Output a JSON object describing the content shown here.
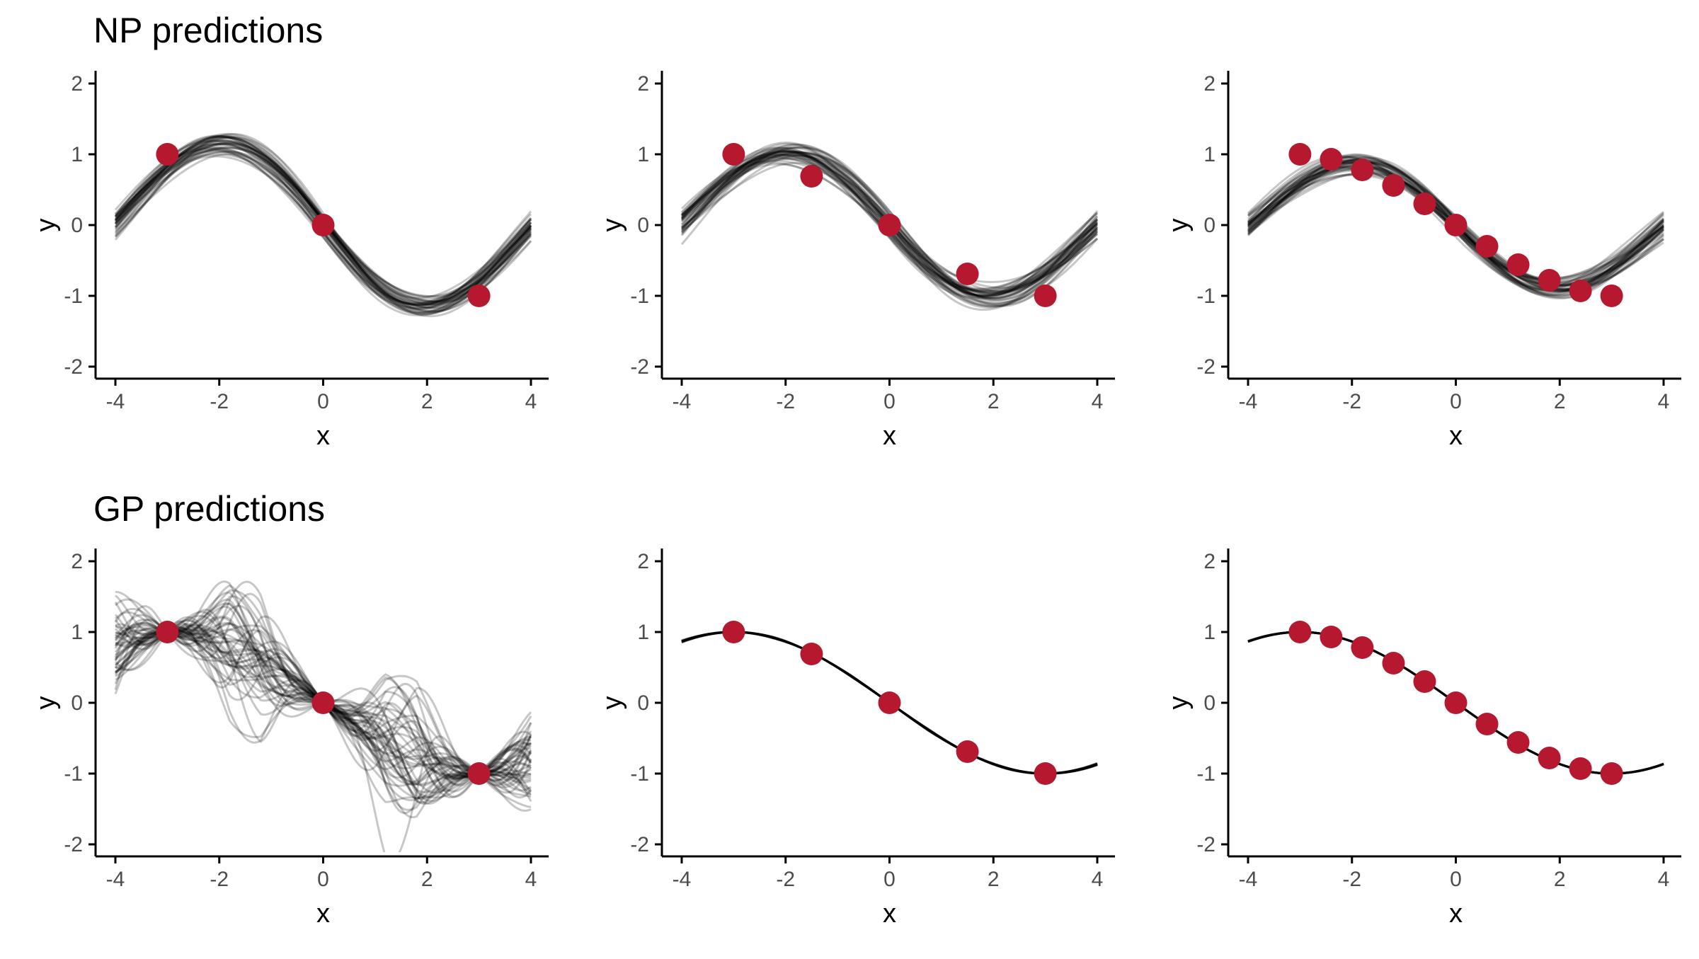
{
  "figure": {
    "rows": [
      {
        "title": "NP predictions",
        "model": "np"
      },
      {
        "title": "GP predictions",
        "model": "gp"
      }
    ]
  },
  "chart_data": [
    {
      "type": "line",
      "model": "np",
      "row": 0,
      "col": 0,
      "xlabel": "x",
      "ylabel": "y",
      "xlim": [
        -4,
        4
      ],
      "ylim": [
        -2,
        2
      ],
      "xticks": [
        "-4",
        "-2",
        "0",
        "2",
        "4"
      ],
      "yticks": [
        "-2",
        "-1",
        "0",
        "1",
        "2"
      ],
      "context_points": [
        {
          "x": -3,
          "y": 1
        },
        {
          "x": 0,
          "y": 0
        },
        {
          "x": 3,
          "y": -1
        }
      ],
      "sample_count": 40,
      "sample_spread": 0.09,
      "amplitude": 1.25
    },
    {
      "type": "line",
      "model": "np",
      "row": 0,
      "col": 1,
      "xlabel": "x",
      "ylabel": "y",
      "xlim": [
        -4,
        4
      ],
      "ylim": [
        -2,
        2
      ],
      "xticks": [
        "-4",
        "-2",
        "0",
        "2",
        "4"
      ],
      "yticks": [
        "-2",
        "-1",
        "0",
        "1",
        "2"
      ],
      "context_points": [
        {
          "x": -3,
          "y": 1
        },
        {
          "x": -1.5,
          "y": 0.69
        },
        {
          "x": 0,
          "y": 0
        },
        {
          "x": 1.5,
          "y": -0.69
        },
        {
          "x": 3,
          "y": -1
        }
      ],
      "sample_count": 40,
      "sample_spread": 0.13,
      "amplitude": 1.1
    },
    {
      "type": "line",
      "model": "np",
      "row": 0,
      "col": 2,
      "xlabel": "x",
      "ylabel": "y",
      "xlim": [
        -4,
        4
      ],
      "ylim": [
        -2,
        2
      ],
      "xticks": [
        "-4",
        "-2",
        "0",
        "2",
        "4"
      ],
      "yticks": [
        "-2",
        "-1",
        "0",
        "1",
        "2"
      ],
      "context_points": [
        {
          "x": -3,
          "y": 1
        },
        {
          "x": -2.4,
          "y": 0.93
        },
        {
          "x": -1.8,
          "y": 0.78
        },
        {
          "x": -1.2,
          "y": 0.56
        },
        {
          "x": -0.6,
          "y": 0.3
        },
        {
          "x": 0,
          "y": 0
        },
        {
          "x": 0.6,
          "y": -0.3
        },
        {
          "x": 1.2,
          "y": -0.56
        },
        {
          "x": 1.8,
          "y": -0.78
        },
        {
          "x": 2.4,
          "y": -0.93
        },
        {
          "x": 3,
          "y": -1
        }
      ],
      "sample_count": 40,
      "sample_spread": 0.1,
      "amplitude": 0.95
    },
    {
      "type": "line",
      "model": "gp",
      "row": 1,
      "col": 0,
      "xlabel": "x",
      "ylabel": "y",
      "xlim": [
        -4,
        4
      ],
      "ylim": [
        -2,
        2
      ],
      "xticks": [
        "-4",
        "-2",
        "0",
        "2",
        "4"
      ],
      "yticks": [
        "-2",
        "-1",
        "0",
        "1",
        "2"
      ],
      "context_points": [
        {
          "x": -3,
          "y": 1
        },
        {
          "x": 0,
          "y": 0
        },
        {
          "x": 3,
          "y": -1
        }
      ],
      "sample_count": 50,
      "sample_spread": 0.8,
      "amplitude": 1.0
    },
    {
      "type": "line",
      "model": "gp",
      "row": 1,
      "col": 1,
      "xlabel": "x",
      "ylabel": "y",
      "xlim": [
        -4,
        4
      ],
      "ylim": [
        -2,
        2
      ],
      "xticks": [
        "-4",
        "-2",
        "0",
        "2",
        "4"
      ],
      "yticks": [
        "-2",
        "-1",
        "0",
        "1",
        "2"
      ],
      "context_points": [
        {
          "x": -3,
          "y": 1
        },
        {
          "x": -1.5,
          "y": 0.69
        },
        {
          "x": 0,
          "y": 0
        },
        {
          "x": 1.5,
          "y": -0.69
        },
        {
          "x": 3,
          "y": -1
        }
      ],
      "sample_count": 30,
      "sample_spread": 0.015,
      "amplitude": 1.0
    },
    {
      "type": "line",
      "model": "gp",
      "row": 1,
      "col": 2,
      "xlabel": "x",
      "ylabel": "y",
      "xlim": [
        -4,
        4
      ],
      "ylim": [
        -2,
        2
      ],
      "xticks": [
        "-4",
        "-2",
        "0",
        "2",
        "4"
      ],
      "yticks": [
        "-2",
        "-1",
        "0",
        "1",
        "2"
      ],
      "context_points": [
        {
          "x": -3,
          "y": 1
        },
        {
          "x": -2.4,
          "y": 0.93
        },
        {
          "x": -1.8,
          "y": 0.78
        },
        {
          "x": -1.2,
          "y": 0.56
        },
        {
          "x": -0.6,
          "y": 0.3
        },
        {
          "x": 0,
          "y": 0
        },
        {
          "x": 0.6,
          "y": -0.3
        },
        {
          "x": 1.2,
          "y": -0.56
        },
        {
          "x": 1.8,
          "y": -0.78
        },
        {
          "x": 2.4,
          "y": -0.93
        },
        {
          "x": 3,
          "y": -1
        }
      ],
      "sample_count": 30,
      "sample_spread": 0.008,
      "amplitude": 1.0
    }
  ]
}
